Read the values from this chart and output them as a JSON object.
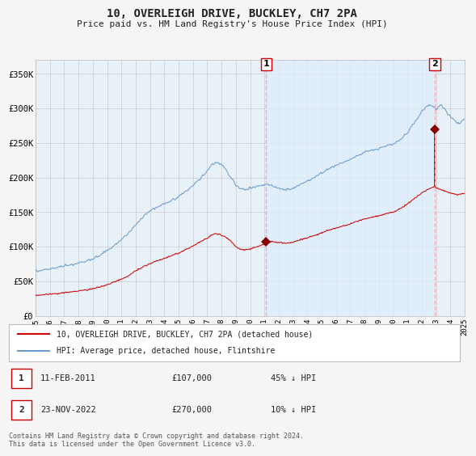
{
  "title": "10, OVERLEIGH DRIVE, BUCKLEY, CH7 2PA",
  "subtitle": "Price paid vs. HM Land Registry's House Price Index (HPI)",
  "background_color": "#f5f5f5",
  "plot_bg_color": "#e8f0f8",
  "grid_color": "#cccccc",
  "ylim": [
    0,
    370000
  ],
  "yticks": [
    0,
    50000,
    100000,
    150000,
    200000,
    250000,
    300000,
    350000
  ],
  "ytick_labels": [
    "£0",
    "£50K",
    "£100K",
    "£150K",
    "£200K",
    "£250K",
    "£300K",
    "£350K"
  ],
  "xstart_year": 1995,
  "xend_year": 2025,
  "sale1_date": 2011.11,
  "sale1_price": 107000,
  "sale2_date": 2022.9,
  "sale2_price": 270000,
  "legend_line1": "10, OVERLEIGH DRIVE, BUCKLEY, CH7 2PA (detached house)",
  "legend_line2": "HPI: Average price, detached house, Flintshire",
  "table_row1": [
    "1",
    "11-FEB-2011",
    "£107,000",
    "45% ↓ HPI"
  ],
  "table_row2": [
    "2",
    "23-NOV-2022",
    "£270,000",
    "10% ↓ HPI"
  ],
  "footer": "Contains HM Land Registry data © Crown copyright and database right 2024.\nThis data is licensed under the Open Government Licence v3.0.",
  "hpi_color": "#6699cc",
  "price_color": "#cc0000",
  "sale_marker_color": "#880000",
  "dashed_line_color": "#ffaaaa",
  "highlight_color": "#ddeeff",
  "border_color": "#999999",
  "text_color": "#222222"
}
